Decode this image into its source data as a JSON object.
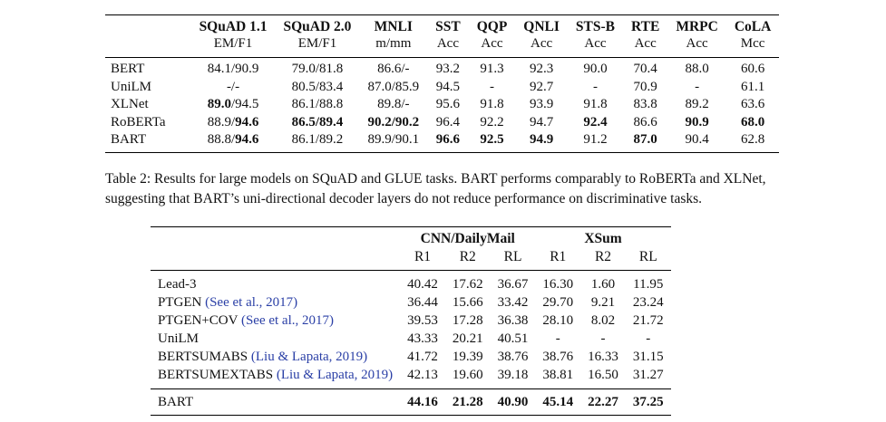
{
  "table1": {
    "headers": [
      "SQuAD 1.1",
      "SQuAD 2.0",
      "MNLI",
      "SST",
      "QQP",
      "QNLI",
      "STS-B",
      "RTE",
      "MRPC",
      "CoLA"
    ],
    "units": [
      "EM/F1",
      "EM/F1",
      "m/mm",
      "Acc",
      "Acc",
      "Acc",
      "Acc",
      "Acc",
      "Acc",
      "Mcc"
    ],
    "rows": [
      {
        "name": "BERT",
        "cells": [
          [
            "84.1/90.9"
          ],
          [
            "79.0/81.8"
          ],
          [
            "86.6/-"
          ],
          [
            "93.2"
          ],
          [
            "91.3"
          ],
          [
            "92.3"
          ],
          [
            "90.0"
          ],
          [
            "70.4"
          ],
          [
            "88.0"
          ],
          [
            "60.6"
          ]
        ]
      },
      {
        "name": "UniLM",
        "cells": [
          [
            "-/-"
          ],
          [
            "80.5/83.4"
          ],
          [
            "87.0/85.9"
          ],
          [
            "94.5"
          ],
          [
            "-"
          ],
          [
            "92.7"
          ],
          [
            "-"
          ],
          [
            "70.9"
          ],
          [
            "-"
          ],
          [
            "61.1"
          ]
        ]
      },
      {
        "name": "XLNet",
        "cells": [
          [
            "89.0",
            "/94.5"
          ],
          [
            "86.1/88.8"
          ],
          [
            "89.8/-"
          ],
          [
            "95.6"
          ],
          [
            "91.8"
          ],
          [
            "93.9"
          ],
          [
            "91.8"
          ],
          [
            "83.8"
          ],
          [
            "89.2"
          ],
          [
            "63.6"
          ]
        ]
      },
      {
        "name": "RoBERTa",
        "cells": [
          [
            "88.9/",
            "94.6"
          ],
          [
            "86.5/89.4"
          ],
          [
            "90.2/90.2"
          ],
          [
            "96.4"
          ],
          [
            "92.2"
          ],
          [
            "94.7"
          ],
          [
            "92.4"
          ],
          [
            "86.6"
          ],
          [
            "90.9"
          ],
          [
            "68.0"
          ]
        ]
      },
      {
        "name": "BART",
        "cells": [
          [
            "88.8/",
            "94.6"
          ],
          [
            "86.1/89.2"
          ],
          [
            "89.9/90.1"
          ],
          [
            "96.6"
          ],
          [
            "92.5"
          ],
          [
            "94.9"
          ],
          [
            "91.2"
          ],
          [
            "87.0"
          ],
          [
            "90.4"
          ],
          [
            "62.8"
          ]
        ]
      }
    ]
  },
  "caption": {
    "label": "Table 2:",
    "text": "Results for large models on SQuAD and GLUE tasks. BART performs comparably to RoBERTa and XLNet, suggesting that BART’s uni-directional decoder layers do not reduce performance on discriminative tasks."
  },
  "table2": {
    "group1": "CNN/DailyMail",
    "group2": "XSum",
    "subheaders": [
      "R1",
      "R2",
      "RL",
      "R1",
      "R2",
      "RL"
    ],
    "rows": [
      {
        "name": "Lead-3",
        "cite": "",
        "values": [
          "40.42",
          "17.62",
          "36.67",
          "16.30",
          "1.60",
          "11.95"
        ]
      },
      {
        "name": "PTGEN",
        "cite": "(See et al., 2017)",
        "values": [
          "36.44",
          "15.66",
          "33.42",
          "29.70",
          "9.21",
          "23.24"
        ]
      },
      {
        "name": "PTGEN+COV",
        "cite": "(See et al., 2017)",
        "values": [
          "39.53",
          "17.28",
          "36.38",
          "28.10",
          "8.02",
          "21.72"
        ]
      },
      {
        "name": "UniLM",
        "cite": "",
        "values": [
          "43.33",
          "20.21",
          "40.51",
          "-",
          "-",
          "-"
        ]
      },
      {
        "name": "BERTSUMABS",
        "cite": "(Liu & Lapata, 2019)",
        "values": [
          "41.72",
          "19.39",
          "38.76",
          "38.76",
          "16.33",
          "31.15"
        ]
      },
      {
        "name": "BERTSUMEXTABS",
        "cite": "(Liu & Lapata, 2019)",
        "values": [
          "42.13",
          "19.60",
          "39.18",
          "38.81",
          "16.50",
          "31.27"
        ]
      }
    ],
    "final_row": {
      "name": "BART",
      "values": [
        "44.16",
        "21.28",
        "40.90",
        "45.14",
        "22.27",
        "37.25"
      ]
    }
  }
}
